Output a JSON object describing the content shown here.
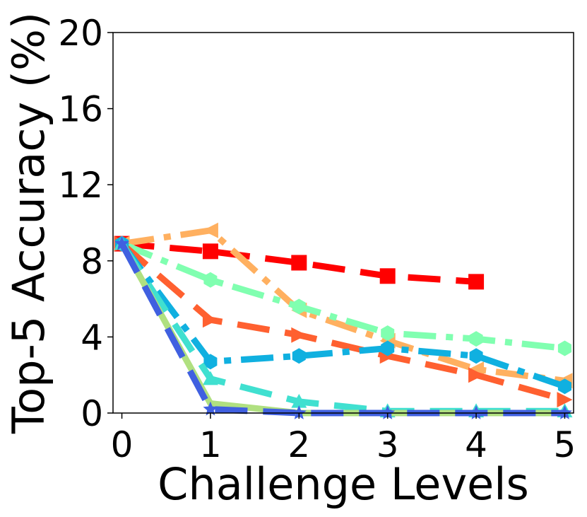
{
  "chart_data": {
    "type": "line",
    "title": "",
    "xlabel": "Challenge Levels",
    "ylabel": "Top-5 Accuracy (%)",
    "x": [
      0,
      1,
      2,
      3,
      4,
      5
    ],
    "x_ticks": [
      "0",
      "1",
      "2",
      "3",
      "4",
      "5"
    ],
    "y_ticks": [
      "0",
      "4",
      "8",
      "12",
      "16",
      "20"
    ],
    "xlim": [
      -0.1,
      5.1
    ],
    "ylim": [
      0,
      20
    ],
    "grid": false,
    "legend": "none",
    "series": [
      {
        "color": "#ff0000",
        "marker": "square",
        "dash": "dashed",
        "values": [
          8.9,
          8.5,
          7.9,
          7.2,
          6.9,
          null
        ]
      },
      {
        "color": "#ffb060",
        "marker": "triangle-left",
        "dash": "dashdot",
        "values": [
          8.9,
          9.6,
          5.4,
          3.8,
          2.3,
          1.7
        ]
      },
      {
        "color": "#80ffb0",
        "marker": "hexagon",
        "dash": "dashdot",
        "values": [
          8.9,
          7.0,
          5.6,
          4.2,
          3.9,
          3.4
        ]
      },
      {
        "color": "#ff6030",
        "marker": "triangle-right",
        "dash": "dashed",
        "values": [
          8.9,
          4.9,
          4.1,
          3.0,
          2.0,
          0.7
        ]
      },
      {
        "color": "#10b0e0",
        "marker": "hexagon",
        "dash": "dashdot",
        "values": [
          8.9,
          2.7,
          3.0,
          3.4,
          3.0,
          1.4
        ]
      },
      {
        "color": "#40e0d0",
        "marker": "triangle-up",
        "dash": "dashed",
        "values": [
          8.9,
          1.8,
          0.6,
          0.1,
          0.1,
          0.1
        ]
      },
      {
        "color": "#b0e080",
        "marker": "none",
        "dash": "solid",
        "values": [
          8.9,
          0.5,
          0.0,
          0.0,
          0.0,
          0.0
        ]
      },
      {
        "color": "#4060e0",
        "marker": "star",
        "dash": "dashed",
        "values": [
          8.9,
          0.2,
          0.0,
          0.0,
          0.0,
          0.0
        ]
      }
    ]
  }
}
